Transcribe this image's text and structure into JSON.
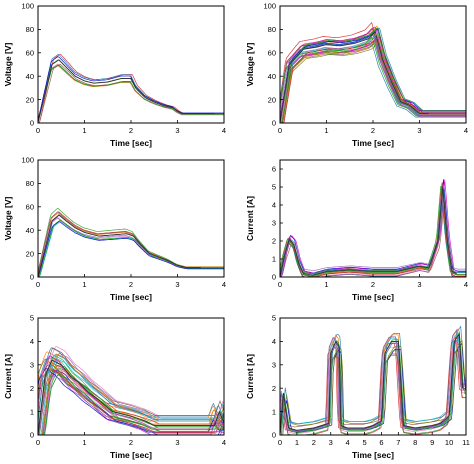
{
  "colors": [
    "#d62728",
    "#1f77b4",
    "#2ca02c",
    "#9467bd",
    "#17becf",
    "#ff7f0e",
    "#e377c2",
    "#8c564b",
    "#00a000",
    "#0000cc",
    "#cc00cc",
    "#808000"
  ],
  "chart_data": [
    {
      "type": "line",
      "xlabel": "Time [sec]",
      "ylabel": "Voltage [V]",
      "xlim": [
        0,
        4
      ],
      "ylim": [
        0,
        100
      ],
      "xticks": [
        "0",
        "1",
        "2",
        "3",
        "4"
      ],
      "yticks": [
        "0",
        "20",
        "40",
        "60",
        "80",
        "100"
      ],
      "grid": false,
      "series": [
        {
          "x": [
            0,
            0.3,
            0.45,
            0.6,
            0.8,
            1.0,
            1.2,
            1.5,
            1.8,
            2.0,
            2.1,
            2.3,
            2.5,
            2.7,
            2.9,
            3.0,
            3.1,
            3.3,
            3.6,
            3.8
          ],
          "y": [
            0,
            50,
            54,
            48,
            40,
            36,
            34,
            35,
            38,
            38,
            30,
            22,
            18,
            15,
            13,
            10,
            8,
            8,
            8,
            8
          ]
        }
      ]
    },
    {
      "type": "line",
      "xlabel": "Time [sec]",
      "ylabel": "Voltage [V]",
      "xlim": [
        0,
        4
      ],
      "ylim": [
        0,
        100
      ],
      "xticks": [
        "0",
        "1",
        "2",
        "3",
        "4"
      ],
      "yticks": [
        "0",
        "20",
        "40",
        "60",
        "80",
        "100"
      ],
      "grid": false,
      "series": [
        {
          "x": [
            0,
            0.2,
            0.5,
            0.8,
            1.0,
            1.3,
            1.6,
            1.9,
            2.05,
            2.2,
            2.4,
            2.6,
            2.8,
            3.0,
            3.2
          ],
          "y": [
            0,
            50,
            63,
            65,
            67,
            66,
            68,
            72,
            78,
            55,
            35,
            18,
            15,
            8,
            8
          ]
        }
      ]
    },
    {
      "type": "line",
      "xlabel": "Time [sec]",
      "ylabel": "Voltage [V]",
      "xlim": [
        0,
        4
      ],
      "ylim": [
        0,
        100
      ],
      "xticks": [
        "0",
        "1",
        "2",
        "3",
        "4"
      ],
      "yticks": [
        "0",
        "20",
        "40",
        "60",
        "80",
        "100"
      ],
      "grid": false,
      "series": [
        {
          "x": [
            0,
            0.3,
            0.45,
            0.6,
            0.8,
            1.0,
            1.3,
            1.6,
            1.9,
            2.05,
            2.2,
            2.4,
            2.6,
            2.8,
            3.0,
            3.2,
            3.5
          ],
          "y": [
            0,
            48,
            53,
            48,
            42,
            38,
            35,
            36,
            37,
            35,
            28,
            20,
            17,
            14,
            10,
            8,
            8
          ]
        }
      ]
    },
    {
      "type": "line",
      "xlabel": "Time [sec]",
      "ylabel": "Current [A]",
      "xlim": [
        0,
        4
      ],
      "ylim": [
        0,
        6.5
      ],
      "xticks": [
        "0",
        "1",
        "2",
        "3",
        "4"
      ],
      "yticks": [
        "0",
        "1",
        "2",
        "3",
        "4",
        "5",
        "6"
      ],
      "grid": false,
      "series": [
        {
          "x": [
            0,
            0.1,
            0.2,
            0.3,
            0.4,
            0.5,
            0.7,
            1.0,
            1.5,
            2.0,
            2.5,
            3.0,
            3.2,
            3.4,
            3.5,
            3.55,
            3.6,
            3.7,
            3.8
          ],
          "y": [
            0,
            1.2,
            2.1,
            1.8,
            0.8,
            0.2,
            0.1,
            0.3,
            0.4,
            0.3,
            0.3,
            0.6,
            0.5,
            2.0,
            5.0,
            3.5,
            2.0,
            0.3,
            0.2
          ]
        }
      ]
    },
    {
      "type": "line",
      "xlabel": "Time [sec]",
      "ylabel": "Current [A]",
      "xlim": [
        0,
        4
      ],
      "ylim": [
        0,
        5
      ],
      "xticks": [
        "0",
        "1",
        "2",
        "3",
        "4"
      ],
      "yticks": [
        "0",
        "1",
        "2",
        "3",
        "4",
        "5"
      ],
      "grid": false,
      "series": [
        {
          "x": [
            0,
            0.15,
            0.3,
            0.5,
            0.7,
            0.9,
            1.1,
            1.3,
            1.6,
            2.0,
            2.3,
            2.5,
            3.0,
            3.5,
            3.8,
            3.9,
            4.0
          ],
          "y": [
            0,
            2.5,
            3.2,
            3.0,
            2.5,
            2.2,
            1.8,
            1.5,
            1.0,
            0.8,
            0.6,
            0.4,
            0.4,
            0.4,
            0.4,
            1.0,
            0.5
          ]
        }
      ]
    },
    {
      "type": "line",
      "xlabel": "Time [sec]",
      "ylabel": "Current [A]",
      "xlim": [
        0,
        11
      ],
      "ylim": [
        0,
        5
      ],
      "xticks": [
        "0",
        "1",
        "2",
        "3",
        "4",
        "5",
        "6",
        "7",
        "8",
        "9",
        "10",
        "11"
      ],
      "yticks": [
        "0",
        "1",
        "2",
        "3",
        "4",
        "5"
      ],
      "grid": false,
      "series": [
        {
          "x": [
            0,
            0.2,
            0.5,
            1.0,
            2.0,
            2.9,
            3.0,
            3.3,
            3.5,
            3.6,
            4.0,
            5.0,
            5.5,
            6.0,
            6.2,
            6.6,
            7.0,
            7.3,
            8.0,
            9.0,
            9.5,
            10.0,
            10.3,
            10.6,
            10.8
          ],
          "y": [
            0,
            1.8,
            0.3,
            0.2,
            0.3,
            0.5,
            3.5,
            4.0,
            3.8,
            0.4,
            0.3,
            0.3,
            0.4,
            0.6,
            3.5,
            4.0,
            4.0,
            0.4,
            0.3,
            0.4,
            0.5,
            0.8,
            4.0,
            4.3,
            2.0
          ]
        }
      ]
    }
  ]
}
